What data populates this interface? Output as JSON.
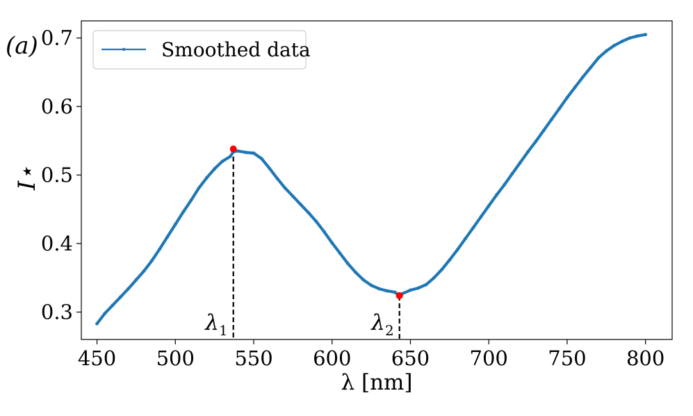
{
  "chart_data": {
    "type": "line",
    "panel_label": "(a)",
    "xlabel": "λ [nm]",
    "ylabel": "I⋆",
    "xlim": [
      440,
      817
    ],
    "ylim": [
      0.26,
      0.725
    ],
    "x_ticks": [
      450,
      500,
      550,
      600,
      650,
      700,
      750,
      800
    ],
    "y_ticks": [
      0.3,
      0.4,
      0.5,
      0.6,
      0.7
    ],
    "x_tick_labels": [
      "450",
      "500",
      "550",
      "600",
      "650",
      "700",
      "750",
      "800"
    ],
    "y_tick_labels": [
      "0.3",
      "0.4",
      "0.5",
      "0.6",
      "0.7"
    ],
    "grid": false,
    "legend": {
      "position": "top-left",
      "entries": [
        "Smoothed data"
      ]
    },
    "series": [
      {
        "name": "Smoothed data",
        "color": "#1f77b4",
        "x": [
          450,
          455,
          460,
          465,
          470,
          475,
          480,
          485,
          490,
          495,
          500,
          505,
          510,
          515,
          520,
          525,
          530,
          535,
          537,
          540,
          545,
          550,
          555,
          560,
          565,
          570,
          575,
          580,
          585,
          590,
          595,
          600,
          605,
          610,
          615,
          620,
          625,
          630,
          635,
          640,
          643,
          645,
          650,
          655,
          660,
          665,
          670,
          675,
          680,
          685,
          690,
          695,
          700,
          705,
          710,
          715,
          720,
          725,
          730,
          735,
          740,
          745,
          750,
          755,
          760,
          765,
          770,
          775,
          780,
          785,
          790,
          795,
          800
        ],
        "y": [
          0.283,
          0.298,
          0.31,
          0.322,
          0.334,
          0.347,
          0.36,
          0.375,
          0.392,
          0.41,
          0.428,
          0.446,
          0.463,
          0.481,
          0.496,
          0.509,
          0.52,
          0.527,
          0.534,
          0.535,
          0.533,
          0.532,
          0.524,
          0.51,
          0.495,
          0.481,
          0.469,
          0.457,
          0.445,
          0.432,
          0.417,
          0.401,
          0.386,
          0.371,
          0.358,
          0.347,
          0.339,
          0.334,
          0.331,
          0.329,
          0.324,
          0.327,
          0.332,
          0.335,
          0.34,
          0.35,
          0.362,
          0.376,
          0.391,
          0.407,
          0.423,
          0.439,
          0.455,
          0.471,
          0.486,
          0.502,
          0.518,
          0.534,
          0.549,
          0.565,
          0.581,
          0.597,
          0.613,
          0.628,
          0.643,
          0.657,
          0.671,
          0.681,
          0.689,
          0.695,
          0.7,
          0.703,
          0.705
        ]
      }
    ],
    "markers": [
      {
        "label": "λ1",
        "base": "λ",
        "sub": "1",
        "x": 537,
        "y": 0.538,
        "color": "#ff0000"
      },
      {
        "label": "λ2",
        "base": "λ",
        "sub": "2",
        "x": 643,
        "y": 0.324,
        "color": "#ff0000"
      }
    ]
  }
}
